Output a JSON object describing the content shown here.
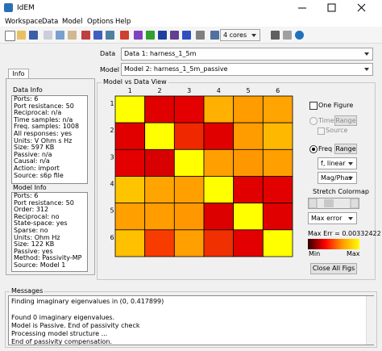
{
  "window": {
    "title": "IdEM"
  },
  "menu": [
    "Workspace",
    "Data",
    "Model",
    "Options",
    "Help"
  ],
  "toolbar": {
    "cores": "4 cores"
  },
  "left_panel": {
    "tab": "Info",
    "data_info": {
      "label": "Data Info",
      "lines": [
        "Ports: 6",
        "Port resistance: 50",
        "Reciprocal: n/a",
        "Time samples: n/a",
        "Freq. samples: 1008",
        "All responses: yes",
        "Units: V Ohm s Hz",
        "Size: 597 KB",
        "Passive: n/a",
        "Causal: n/a",
        "Action: import",
        "Source: s6p file"
      ]
    },
    "model_info": {
      "label": "Model Info",
      "lines": [
        "Ports: 6",
        "Port resistance: 50",
        "Order: 312",
        "Reciprocal: no",
        "State-space: yes",
        "Sparse: no",
        "Units: Ohm Hz",
        "Size: 122 KB",
        "Passive: yes",
        "Method: Passivity-MP",
        "Source: Model 1"
      ]
    }
  },
  "selectors": {
    "data_label": "Data",
    "data_value": "Data 1: harness_1_5m",
    "model_label": "Model",
    "model_value": "Model 2: harness_1_5m_passive"
  },
  "view": {
    "title": "Model vs Data View",
    "col_labels": [
      1,
      2,
      3,
      4,
      5,
      6
    ],
    "row_labels": [
      1,
      2,
      3,
      4,
      5,
      6
    ],
    "cell_colors": [
      [
        "#ffff00",
        "#e00000",
        "#e40000",
        "#ffb000",
        "#ff9c00",
        "#ffa400"
      ],
      [
        "#e00000",
        "#ffff00",
        "#f02800",
        "#e00000",
        "#ff9c00",
        "#ffb800"
      ],
      [
        "#e40000",
        "#d80000",
        "#ffff00",
        "#ffa000",
        "#ff9800",
        "#ffa000"
      ],
      [
        "#ffc400",
        "#ffa400",
        "#ffa000",
        "#ffff00",
        "#e00000",
        "#e20000"
      ],
      [
        "#ffa000",
        "#ff9c00",
        "#ff9800",
        "#dc0000",
        "#ffff00",
        "#e00000"
      ],
      [
        "#ffc000",
        "#f83c00",
        "#ffa000",
        "#f03000",
        "#e20000",
        "#ffff00"
      ]
    ]
  },
  "controls": {
    "one_figure": "One Figure",
    "time": "Time",
    "time_range": "Range",
    "source": "Source",
    "freq": "Freq",
    "freq_range": "Range",
    "freq_scale": "f, linear",
    "plot_kind": "Mag/Phas",
    "stretch": "Stretch Colormap",
    "metric": "Max error",
    "max_err": "Max Err = 0.00332422",
    "colormap": [
      "#300000",
      "#ff0000",
      "#ff9a00",
      "#ffff00"
    ],
    "min_label": "Min",
    "max_label": "Max",
    "close_all": "Close All Figs"
  },
  "messages": {
    "label": "Messages",
    "lines": [
      "Finding imaginary eigenvalues in (0, 0.417899)",
      "Found 0 imaginary eigenvalues.",
      "Model is Passive. End of passivity check",
      "Processing model structure ...",
      "End of passivity compensation."
    ]
  }
}
